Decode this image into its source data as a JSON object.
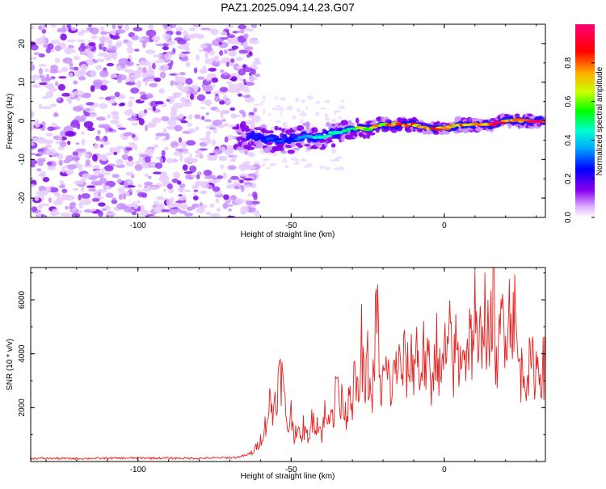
{
  "title": "PAZ1.2025.094.14.23.G07",
  "chart_data": [
    {
      "type": "heatmap",
      "xlabel": "Height of straight line (km)",
      "ylabel": "Frequency (Hz)",
      "xlim": [
        -135,
        33
      ],
      "ylim": [
        -25,
        25
      ],
      "xticks": [
        -100,
        -50,
        0
      ],
      "yticks": [
        -20,
        -10,
        0,
        10,
        20
      ],
      "xtick_labels": [
        "-100",
        "-50",
        "0"
      ],
      "ytick_labels": [
        "-20",
        "-10",
        "0",
        "10",
        "20"
      ],
      "noise_region": {
        "x_range": [
          -135,
          -62
        ],
        "y_range": [
          -25,
          25
        ],
        "amplitude": 0.15
      },
      "signal_track": {
        "x": [
          -68,
          -62,
          -55,
          -50,
          -45,
          -40,
          -35,
          -30,
          -25,
          -20,
          -15,
          -10,
          -5,
          0,
          5,
          10,
          15,
          20,
          25,
          30,
          33
        ],
        "frequency": [
          -4,
          -4,
          -5,
          -5,
          -4,
          -4,
          -3,
          -2,
          -2,
          -1,
          -1,
          -1,
          -2,
          -2,
          -1,
          -1,
          -1,
          0,
          0,
          0,
          0
        ],
        "amplitude": [
          0.15,
          0.25,
          0.3,
          0.3,
          0.35,
          0.5,
          0.45,
          0.55,
          0.7,
          0.75,
          0.8,
          0.85,
          0.8,
          0.85,
          0.8,
          0.85,
          0.9,
          0.9,
          0.95,
          0.95,
          0.95
        ]
      },
      "colorbar": {
        "label": "Normalized spectral amplitude",
        "range": [
          0,
          1
        ],
        "ticks": [
          0,
          0.2,
          0.4,
          0.6,
          0.8
        ],
        "tick_labels": [
          "0.0",
          "0.2",
          "0.4",
          "0.6",
          "0.8"
        ],
        "colors": [
          "#ffffff",
          "#cc88ff",
          "#7700ee",
          "#0000ff",
          "#00ccff",
          "#00ff66",
          "#ccff00",
          "#ffaa00",
          "#ff0000",
          "#ff0066"
        ]
      }
    },
    {
      "type": "line",
      "xlabel": "Height of straight line (km)",
      "ylabel": "SNR (10 * v/v)",
      "xlim": [
        -135,
        33
      ],
      "ylim": [
        0,
        7200
      ],
      "xticks": [
        -100,
        -50,
        0
      ],
      "yticks": [
        2000,
        4000,
        6000
      ],
      "xtick_labels": [
        "-100",
        "-50",
        "0"
      ],
      "ytick_labels": [
        "2000",
        "4000",
        "6000"
      ],
      "series": [
        {
          "color": "#e8201e",
          "x": [
            -135,
            -120,
            -100,
            -80,
            -68,
            -64,
            -62,
            -60,
            -58,
            -57,
            -56,
            -55,
            -54,
            -53,
            -52,
            -51,
            -50,
            -49,
            -48,
            -47,
            -46,
            -45,
            -44,
            -43,
            -42,
            -41,
            -40,
            -39,
            -38,
            -37,
            -36,
            -35,
            -34,
            -33,
            -32,
            -31,
            -30,
            -29,
            -28,
            -27,
            -26,
            -25,
            -24,
            -23,
            -22,
            -21,
            -20,
            -19,
            -18,
            -17,
            -16,
            -15,
            -14,
            -13,
            -12,
            -11,
            -10,
            -9,
            -8,
            -7,
            -6,
            -5,
            -4,
            -3,
            -2,
            -1,
            0,
            1,
            2,
            3,
            4,
            5,
            6,
            7,
            8,
            9,
            10,
            11,
            12,
            13,
            14,
            15,
            16,
            17,
            18,
            19,
            20,
            21,
            22,
            23,
            24,
            25,
            27,
            29,
            31,
            33
          ],
          "y": [
            120,
            110,
            130,
            120,
            150,
            250,
            400,
            800,
            1500,
            2200,
            1800,
            2500,
            3000,
            3200,
            2000,
            1200,
            1800,
            1000,
            1400,
            700,
            1300,
            900,
            1100,
            1600,
            1500,
            1400,
            1000,
            1800,
            1200,
            2600,
            1400,
            3500,
            1800,
            2500,
            1500,
            3000,
            2300,
            3200,
            2000,
            4400,
            2400,
            3700,
            2200,
            3200,
            6200,
            2500,
            3000,
            3300,
            3000,
            2500,
            3800,
            3600,
            3200,
            3800,
            3300,
            3800,
            3600,
            4300,
            3000,
            4200,
            3400,
            3500,
            2500,
            4800,
            3800,
            2700,
            4300,
            3600,
            4800,
            3400,
            4500,
            3100,
            5000,
            3700,
            4800,
            4300,
            5600,
            3300,
            5000,
            5900,
            4600,
            4100,
            7200,
            3300,
            4200,
            5600,
            5200,
            5500,
            5800,
            5400,
            3800,
            3300,
            3400,
            3500,
            3500,
            3500
          ]
        }
      ]
    }
  ]
}
